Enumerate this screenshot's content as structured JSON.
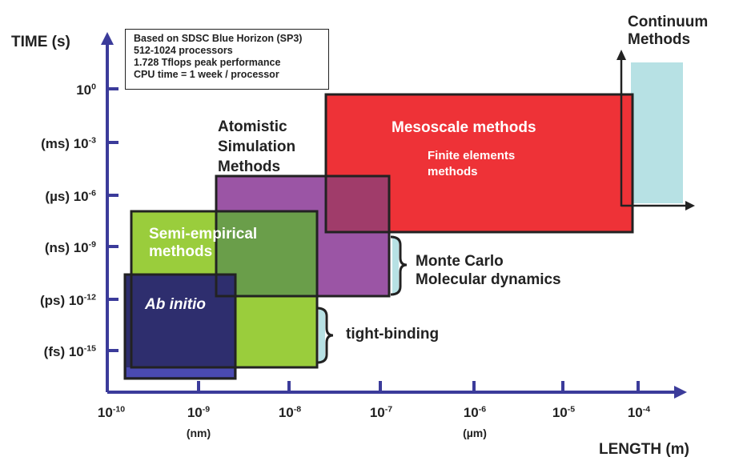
{
  "axes": {
    "y_title": "TIME (s)",
    "x_title": "LENGTH (m)",
    "y_ticks": [
      {
        "prefix": "",
        "base": "10",
        "exp": "0"
      },
      {
        "prefix": "(ms) ",
        "base": "10",
        "exp": "-3"
      },
      {
        "prefix": "(µs) ",
        "base": "10",
        "exp": "-6"
      },
      {
        "prefix": "(ns) ",
        "base": "10",
        "exp": "-9"
      },
      {
        "prefix": "(ps) ",
        "base": "10",
        "exp": "-12"
      },
      {
        "prefix": "(fs) ",
        "base": "10",
        "exp": "-15"
      }
    ],
    "x_ticks": [
      {
        "base": "10",
        "exp": "-10",
        "unit": ""
      },
      {
        "base": "10",
        "exp": "-9",
        "unit": "(nm)"
      },
      {
        "base": "10",
        "exp": "-8",
        "unit": ""
      },
      {
        "base": "10",
        "exp": "-7",
        "unit": ""
      },
      {
        "base": "10",
        "exp": "-6",
        "unit": "(µm)"
      },
      {
        "base": "10",
        "exp": "-5",
        "unit": ""
      },
      {
        "base": "10",
        "exp": "-4",
        "unit": ""
      }
    ]
  },
  "info_box": {
    "line1": "Based on SDSC Blue Horizon (SP3)",
    "line2": "512-1024 processors",
    "line3": "1.728 Tflops peak performance",
    "line4": "CPU time = 1 week / processor"
  },
  "regions": {
    "ab_initio": {
      "label": "Ab initio",
      "color": "#2e2e6e"
    },
    "semi_empirical": {
      "line1": "Semi-empirical",
      "line2": "methods",
      "color": "#9acd3c"
    },
    "atomistic": {
      "line1": "Atomistic",
      "line2": "Simulation",
      "line3": "Methods",
      "color": "#9b55a5"
    },
    "mesoscale": {
      "title": "Mesoscale methods",
      "sub1": "Finite elements",
      "sub2": "methods",
      "color": "#ee3237"
    },
    "continuum": {
      "line1": "Continuum",
      "line2": "Methods",
      "color": "#b7e1e4"
    }
  },
  "brackets": {
    "monte_carlo_line1": "Monte Carlo",
    "monte_carlo_line2": "Molecular dynamics",
    "tight_binding": "tight-binding"
  },
  "colors": {
    "axis": "#3b3b9a",
    "overlap_green_purple": "#6a9e4a",
    "overlap_purple_red": "#a03c6a",
    "bracket_fill": "#b7e1e4"
  }
}
